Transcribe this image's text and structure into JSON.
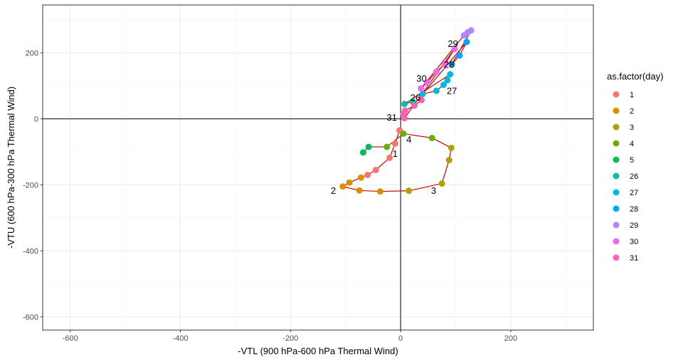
{
  "chart_data": {
    "type": "scatter",
    "xlabel": "-VTL (900 hPa-600 hPa Thermal Wind)",
    "ylabel": "-VTU (600 hPa-300 hPa Thermal Wind)",
    "xlim": [
      -650,
      350
    ],
    "ylim": [
      -640,
      345
    ],
    "x_ticks": [
      -600,
      -400,
      -200,
      0,
      200
    ],
    "y_ticks": [
      -600,
      -400,
      -200,
      0,
      200
    ],
    "grid": true,
    "reference_lines": {
      "x": 0,
      "y": 0
    },
    "path_color": "#cc0000",
    "legend": {
      "title": "as.factor(day)",
      "position": "right",
      "entries": [
        {
          "label": "1",
          "color": "#F8766D"
        },
        {
          "label": "2",
          "color": "#DB8E00"
        },
        {
          "label": "3",
          "color": "#AEA200"
        },
        {
          "label": "4",
          "color": "#64B200"
        },
        {
          "label": "5",
          "color": "#00BD5C"
        },
        {
          "label": "26",
          "color": "#00C1A7"
        },
        {
          "label": "27",
          "color": "#00BADE"
        },
        {
          "label": "28",
          "color": "#00A6FF"
        },
        {
          "label": "29",
          "color": "#B385FF"
        },
        {
          "label": "30",
          "color": "#EF67EB"
        },
        {
          "label": "31",
          "color": "#FF63B6"
        }
      ]
    },
    "series": [
      {
        "name": "1",
        "color": "#F8766D",
        "x": [
          -2,
          -10,
          -20,
          -45,
          -60
        ],
        "y": [
          -35,
          -75,
          -118,
          -155,
          -170
        ]
      },
      {
        "name": "2",
        "color": "#DB8E00",
        "x": [
          -72,
          -93,
          -105,
          -75,
          -37
        ],
        "y": [
          -178,
          -193,
          -205,
          -217,
          -220
        ]
      },
      {
        "name": "3",
        "color": "#AEA200",
        "x": [
          15,
          75,
          88,
          92
        ],
        "y": [
          -218,
          -196,
          -125,
          -88
        ]
      },
      {
        "name": "4",
        "color": "#64B200",
        "x": [
          57,
          5,
          -25
        ],
        "y": [
          -58,
          -45,
          -85
        ]
      },
      {
        "name": "5",
        "color": "#00BD5C",
        "x": [
          -58,
          -68
        ],
        "y": [
          -85,
          -102
        ]
      },
      {
        "name": "26",
        "color": "#00C1A7",
        "x": [
          7,
          22
        ],
        "y": [
          45,
          52
        ]
      },
      {
        "name": "27",
        "color": "#00BADE",
        "x": [
          40,
          65,
          78,
          85,
          90
        ],
        "y": [
          75,
          85,
          103,
          117,
          135
        ]
      },
      {
        "name": "28",
        "color": "#00A6FF",
        "x": [
          93,
          107,
          120
        ],
        "y": [
          165,
          192,
          233
        ]
      },
      {
        "name": "29",
        "color": "#B385FF",
        "x": [
          115,
          122,
          128
        ],
        "y": [
          253,
          262,
          268
        ]
      },
      {
        "name": "30",
        "color": "#EF67EB",
        "x": [
          98,
          80,
          65,
          48,
          37
        ],
        "y": [
          212,
          165,
          143,
          110,
          92
        ]
      },
      {
        "name": "31",
        "color": "#FF63B6",
        "x": [
          38,
          25,
          8,
          5,
          7
        ],
        "y": [
          57,
          40,
          25,
          15,
          2
        ]
      }
    ],
    "point_labels": [
      {
        "text": "1",
        "x": -10,
        "y": -108
      },
      {
        "text": "2",
        "x": -122,
        "y": -220
      },
      {
        "text": "3",
        "x": 60,
        "y": -220
      },
      {
        "text": "4",
        "x": 15,
        "y": -65
      },
      {
        "text": "26",
        "x": 27,
        "y": 62
      },
      {
        "text": "27",
        "x": 93,
        "y": 82
      },
      {
        "text": "28",
        "x": 88,
        "y": 162
      },
      {
        "text": "29",
        "x": 95,
        "y": 225
      },
      {
        "text": "30",
        "x": 38,
        "y": 120
      },
      {
        "text": "31",
        "x": -16,
        "y": 2
      }
    ]
  }
}
